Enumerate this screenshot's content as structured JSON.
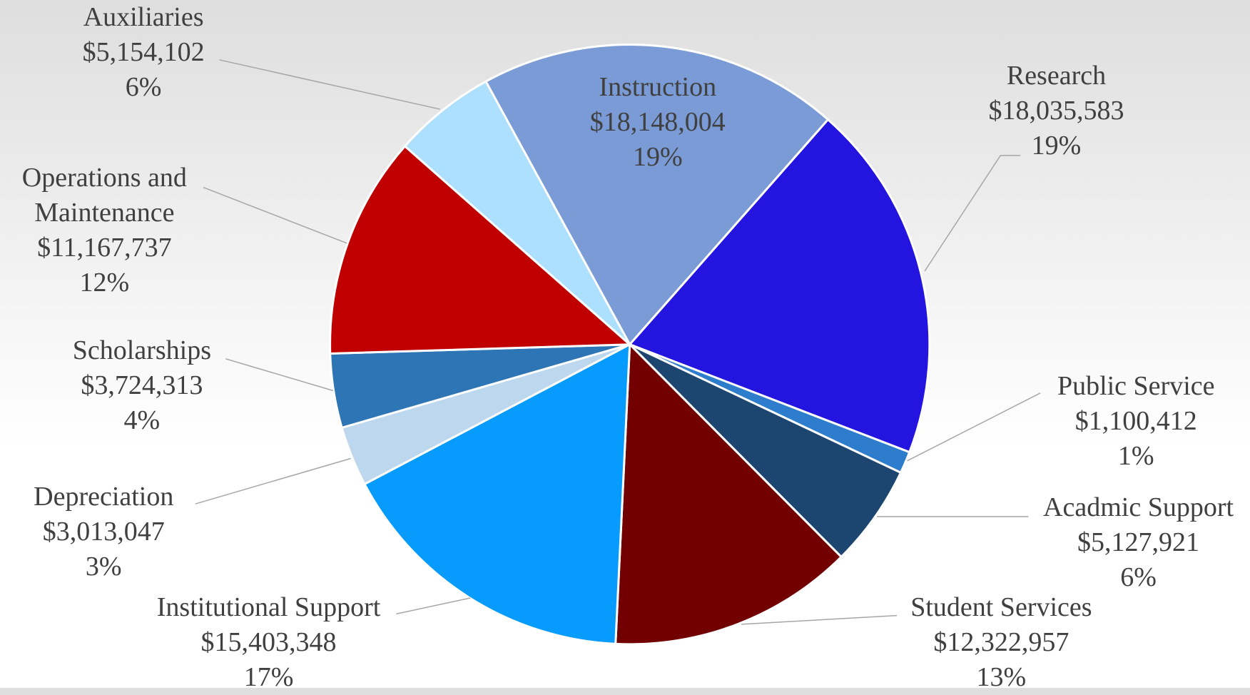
{
  "chart_data": {
    "type": "pie",
    "categories": [
      "Instruction",
      "Research",
      "Public Service",
      "Acadmic Support",
      "Student Services",
      "Institutional Support",
      "Depreciation",
      "Scholarships",
      "Operations and Maintenance",
      "Auxiliaries"
    ],
    "values": [
      18148004,
      18035583,
      1100412,
      5127921,
      12322957,
      15403348,
      3013047,
      3724313,
      11167737,
      5154102
    ],
    "value_labels": [
      "$18,148,004",
      "$18,035,583",
      "$1,100,412",
      "$5,127,921",
      "$12,322,957",
      "$15,403,348",
      "$3,013,047",
      "$3,724,313",
      "$11,167,737",
      "$5,154,102"
    ],
    "percent_labels": [
      "19%",
      "19%",
      "1%",
      "6%",
      "13%",
      "17%",
      "3%",
      "4%",
      "12%",
      "6%"
    ],
    "colors": [
      "#7b9bd6",
      "#2314e0",
      "#2e7dcc",
      "#1c4570",
      "#720000",
      "#069bfc",
      "#bdd7ee",
      "#2e75b6",
      "#c00000",
      "#addfff"
    ]
  }
}
